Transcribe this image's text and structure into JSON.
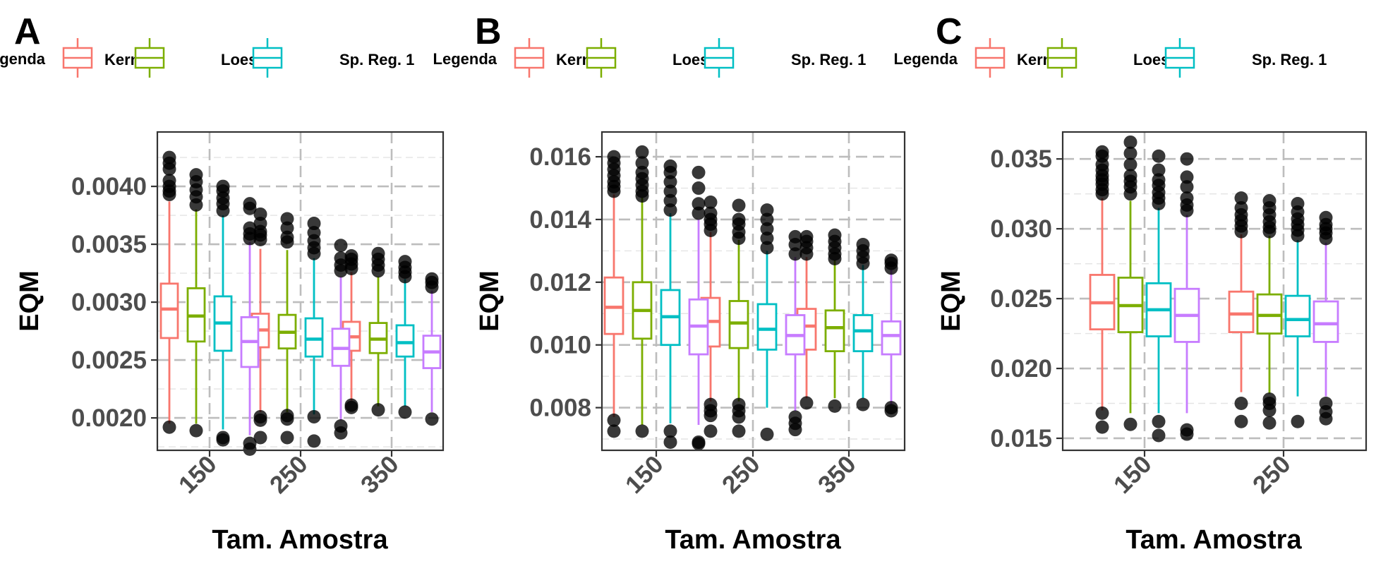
{
  "chart_data": [
    {
      "panel": "A",
      "type": "boxplot",
      "legend": {
        "title": "Legenda",
        "entries": [
          "Kernel",
          "Loess",
          "Sp. Reg. 1"
        ]
      },
      "xlabel": "Tam. Amostra",
      "ylabel": "EQM",
      "categories": [
        "150",
        "250",
        "350"
      ],
      "yticks": [
        "0.0020",
        "0.0025",
        "0.0030",
        "0.0035",
        "0.0040"
      ],
      "ytick_values": [
        0.002,
        0.0025,
        0.003,
        0.0035,
        0.004
      ],
      "ylim": [
        0.00172,
        0.00447
      ],
      "grid": true,
      "series": [
        {
          "name": "Kernel",
          "color": "#F8766D",
          "boxes": [
            {
              "q1": 0.00269,
              "median": 0.00294,
              "q3": 0.00316,
              "low": 0.00195,
              "high": 0.00387,
              "outliers": [
                0.00192,
                0.00393,
                0.00396,
                0.004,
                0.00405,
                0.00415,
                0.0042,
                0.00425
              ]
            },
            {
              "q1": 0.00261,
              "median": 0.00276,
              "q3": 0.0029,
              "low": 0.00205,
              "high": 0.00346,
              "outliers": [
                0.00183,
                0.00198,
                0.00201,
                0.00354,
                0.00358,
                0.00361,
                0.00368,
                0.00376
              ]
            },
            {
              "q1": 0.00258,
              "median": 0.0027,
              "q3": 0.00283,
              "low": 0.00215,
              "high": 0.00326,
              "outliers": [
                0.00209,
                0.00211,
                0.00329,
                0.00333,
                0.00337,
                0.0034
              ]
            }
          ]
        },
        {
          "name": "Loess",
          "color": "#7CAE00",
          "boxes": [
            {
              "q1": 0.00266,
              "median": 0.00288,
              "q3": 0.00312,
              "low": 0.00195,
              "high": 0.0038,
              "outliers": [
                0.00189,
                0.00384,
                0.00391,
                0.00397,
                0.00404,
                0.0041
              ]
            },
            {
              "q1": 0.0026,
              "median": 0.00274,
              "q3": 0.00289,
              "low": 0.00205,
              "high": 0.00345,
              "outliers": [
                0.00183,
                0.00199,
                0.00202,
                0.00352,
                0.00356,
                0.00364,
                0.00372
              ]
            },
            {
              "q1": 0.00256,
              "median": 0.00268,
              "q3": 0.00282,
              "low": 0.0021,
              "high": 0.00322,
              "outliers": [
                0.00207,
                0.00327,
                0.00332,
                0.00337,
                0.00342
              ]
            }
          ]
        },
        {
          "name": "Sp. Reg. 1",
          "color": "#00BFC4",
          "boxes": [
            {
              "q1": 0.00258,
              "median": 0.00282,
              "q3": 0.00305,
              "low": 0.0019,
              "high": 0.00375,
              "outliers": [
                0.00181,
                0.00183,
                0.00379,
                0.00385,
                0.0039,
                0.00396,
                0.004
              ]
            },
            {
              "q1": 0.00253,
              "median": 0.00268,
              "q3": 0.00286,
              "low": 0.00203,
              "high": 0.00338,
              "outliers": [
                0.0018,
                0.00201,
                0.00342,
                0.00347,
                0.00353,
                0.0036,
                0.00368
              ]
            },
            {
              "q1": 0.00253,
              "median": 0.00265,
              "q3": 0.0028,
              "low": 0.0021,
              "high": 0.0032,
              "outliers": [
                0.00205,
                0.00322,
                0.00326,
                0.0033,
                0.00335
              ]
            }
          ]
        },
        {
          "name": "",
          "color": "#C77CFF",
          "boxes": [
            {
              "q1": 0.00244,
              "median": 0.00266,
              "q3": 0.00287,
              "low": 0.00185,
              "high": 0.00352,
              "outliers": [
                0.00173,
                0.00178,
                0.00355,
                0.00359,
                0.00364,
                0.00381,
                0.00385
              ]
            },
            {
              "q1": 0.00245,
              "median": 0.0026,
              "q3": 0.00277,
              "low": 0.00198,
              "high": 0.00322,
              "outliers": [
                0.00187,
                0.00193,
                0.00327,
                0.00332,
                0.00338,
                0.00349
              ]
            },
            {
              "q1": 0.00243,
              "median": 0.00257,
              "q3": 0.00271,
              "low": 0.00205,
              "high": 0.0031,
              "outliers": [
                0.00199,
                0.00313,
                0.00317,
                0.0032
              ]
            }
          ]
        }
      ]
    },
    {
      "panel": "B",
      "type": "boxplot",
      "legend": {
        "title": "Legenda",
        "entries": [
          "Kernel",
          "Loess",
          "Sp. Reg. 1"
        ]
      },
      "xlabel": "Tam. Amostra",
      "ylabel": "EQM",
      "categories": [
        "150",
        "250",
        "350"
      ],
      "yticks": [
        "0.008",
        "0.010",
        "0.012",
        "0.014",
        "0.016"
      ],
      "ytick_values": [
        0.008,
        0.01,
        0.012,
        0.014,
        0.016
      ],
      "ylim": [
        0.00664,
        0.01679
      ],
      "grid": true,
      "series": [
        {
          "name": "Kernel",
          "color": "#F8766D",
          "boxes": [
            {
              "q1": 0.01035,
              "median": 0.0112,
              "q3": 0.01215,
              "low": 0.0077,
              "high": 0.0148,
              "outliers": [
                0.00725,
                0.0076,
                0.0149,
                0.01505,
                0.0152,
                0.0154,
                0.0156,
                0.0158,
                0.016
              ]
            },
            {
              "q1": 0.00995,
              "median": 0.01075,
              "q3": 0.0115,
              "low": 0.0082,
              "high": 0.0136,
              "outliers": [
                0.00725,
                0.00775,
                0.0079,
                0.0081,
                0.01365,
                0.01385,
                0.014,
                0.0142,
                0.01455
              ]
            },
            {
              "q1": 0.00985,
              "median": 0.0106,
              "q3": 0.01115,
              "low": 0.0083,
              "high": 0.0128,
              "outliers": [
                0.00815,
                0.0129,
                0.0131,
                0.0133,
                0.01345
              ]
            }
          ]
        },
        {
          "name": "Loess",
          "color": "#7CAE00",
          "boxes": [
            {
              "q1": 0.0102,
              "median": 0.0111,
              "q3": 0.012,
              "low": 0.00745,
              "high": 0.0147,
              "outliers": [
                0.00725,
                0.01475,
                0.0149,
                0.0151,
                0.0153,
                0.0155,
                0.0158,
                0.01615
              ]
            },
            {
              "q1": 0.0099,
              "median": 0.0107,
              "q3": 0.0114,
              "low": 0.0082,
              "high": 0.01335,
              "outliers": [
                0.00725,
                0.0077,
                0.0079,
                0.0081,
                0.0134,
                0.0136,
                0.01385,
                0.014,
                0.01445
              ]
            },
            {
              "q1": 0.0098,
              "median": 0.01055,
              "q3": 0.0111,
              "low": 0.0083,
              "high": 0.0127,
              "outliers": [
                0.00805,
                0.01275,
                0.0129,
                0.0131,
                0.0133,
                0.0135
              ]
            }
          ]
        },
        {
          "name": "Sp. Reg. 1",
          "color": "#00BFC4",
          "boxes": [
            {
              "q1": 0.01,
              "median": 0.0109,
              "q3": 0.01175,
              "low": 0.0075,
              "high": 0.0142,
              "outliers": [
                0.0069,
                0.00725,
                0.0143,
                0.0146,
                0.0149,
                0.0152,
                0.0155,
                0.0157
              ]
            },
            {
              "q1": 0.00985,
              "median": 0.0105,
              "q3": 0.0113,
              "low": 0.008,
              "high": 0.013,
              "outliers": [
                0.00715,
                0.0131,
                0.0134,
                0.0137,
                0.014,
                0.0143
              ]
            },
            {
              "q1": 0.0098,
              "median": 0.01045,
              "q3": 0.01095,
              "low": 0.0083,
              "high": 0.01255,
              "outliers": [
                0.0081,
                0.0126,
                0.0128,
                0.013,
                0.0132
              ]
            }
          ]
        },
        {
          "name": "",
          "color": "#C77CFF",
          "boxes": [
            {
              "q1": 0.0097,
              "median": 0.0106,
              "q3": 0.01145,
              "low": 0.00745,
              "high": 0.014,
              "outliers": [
                0.00685,
                0.0069,
                0.0142,
                0.0145,
                0.015,
                0.0155
              ]
            },
            {
              "q1": 0.0097,
              "median": 0.0103,
              "q3": 0.01095,
              "low": 0.0079,
              "high": 0.0128,
              "outliers": [
                0.0073,
                0.0075,
                0.0077,
                0.0129,
                0.0132,
                0.01345
              ]
            },
            {
              "q1": 0.0097,
              "median": 0.0103,
              "q3": 0.01075,
              "low": 0.0081,
              "high": 0.0124,
              "outliers": [
                0.0079,
                0.008,
                0.01245,
                0.0126,
                0.0127
              ]
            }
          ]
        }
      ]
    },
    {
      "panel": "C",
      "type": "boxplot",
      "legend": {
        "title": "Legenda",
        "entries": [
          "Kernel",
          "Loess",
          "Sp. Reg. 1"
        ]
      },
      "xlabel": "Tam. Amostra",
      "ylabel": "EQM",
      "categories": [
        "150",
        "250"
      ],
      "yticks": [
        "0.015",
        "0.020",
        "0.025",
        "0.030",
        "0.035"
      ],
      "ytick_values": [
        0.015,
        0.02,
        0.025,
        0.03,
        0.035
      ],
      "ylim": [
        0.01414,
        0.03693
      ],
      "grid": true,
      "series": [
        {
          "name": "Kernel",
          "color": "#F8766D",
          "boxes": [
            {
              "q1": 0.0228,
              "median": 0.0247,
              "q3": 0.0267,
              "low": 0.017,
              "high": 0.0322,
              "outliers": [
                0.0158,
                0.0168,
                0.0325,
                0.0328,
                0.0332,
                0.0335,
                0.0338,
                0.0342,
                0.0346,
                0.0352,
                0.0355
              ]
            },
            {
              "q1": 0.0226,
              "median": 0.0239,
              "q3": 0.0255,
              "low": 0.0183,
              "high": 0.0296,
              "outliers": [
                0.0162,
                0.0175,
                0.0298,
                0.0302,
                0.0306,
                0.031,
                0.0315,
                0.0322
              ]
            }
          ]
        },
        {
          "name": "Loess",
          "color": "#7CAE00",
          "boxes": [
            {
              "q1": 0.0226,
              "median": 0.0245,
              "q3": 0.0265,
              "low": 0.0168,
              "high": 0.032,
              "outliers": [
                0.016,
                0.0325,
                0.033,
                0.0334,
                0.0338,
                0.0346,
                0.0354,
                0.0362
              ]
            },
            {
              "q1": 0.0225,
              "median": 0.0238,
              "q3": 0.0253,
              "low": 0.0182,
              "high": 0.0295,
              "outliers": [
                0.0161,
                0.017,
                0.0175,
                0.0178,
                0.0298,
                0.0301,
                0.0305,
                0.031,
                0.0315,
                0.032
              ]
            }
          ]
        },
        {
          "name": "Sp. Reg. 1",
          "color": "#00BFC4",
          "boxes": [
            {
              "q1": 0.0223,
              "median": 0.0242,
              "q3": 0.0261,
              "low": 0.0168,
              "high": 0.0315,
              "outliers": [
                0.0152,
                0.0162,
                0.0318,
                0.0322,
                0.0326,
                0.0331,
                0.0335,
                0.0342,
                0.0352
              ]
            },
            {
              "q1": 0.0223,
              "median": 0.0235,
              "q3": 0.0252,
              "low": 0.018,
              "high": 0.0292,
              "outliers": [
                0.0162,
                0.0295,
                0.0299,
                0.0303,
                0.0307,
                0.0312,
                0.0318
              ]
            }
          ]
        },
        {
          "name": "",
          "color": "#C77CFF",
          "boxes": [
            {
              "q1": 0.0219,
              "median": 0.0238,
              "q3": 0.0257,
              "low": 0.0168,
              "high": 0.031,
              "outliers": [
                0.0153,
                0.0156,
                0.0313,
                0.0317,
                0.0322,
                0.033,
                0.0337,
                0.035
              ]
            },
            {
              "q1": 0.0219,
              "median": 0.0232,
              "q3": 0.0248,
              "low": 0.018,
              "high": 0.029,
              "outliers": [
                0.0164,
                0.0169,
                0.0175,
                0.0293,
                0.0297,
                0.03,
                0.0303,
                0.0308
              ]
            }
          ]
        }
      ]
    }
  ]
}
